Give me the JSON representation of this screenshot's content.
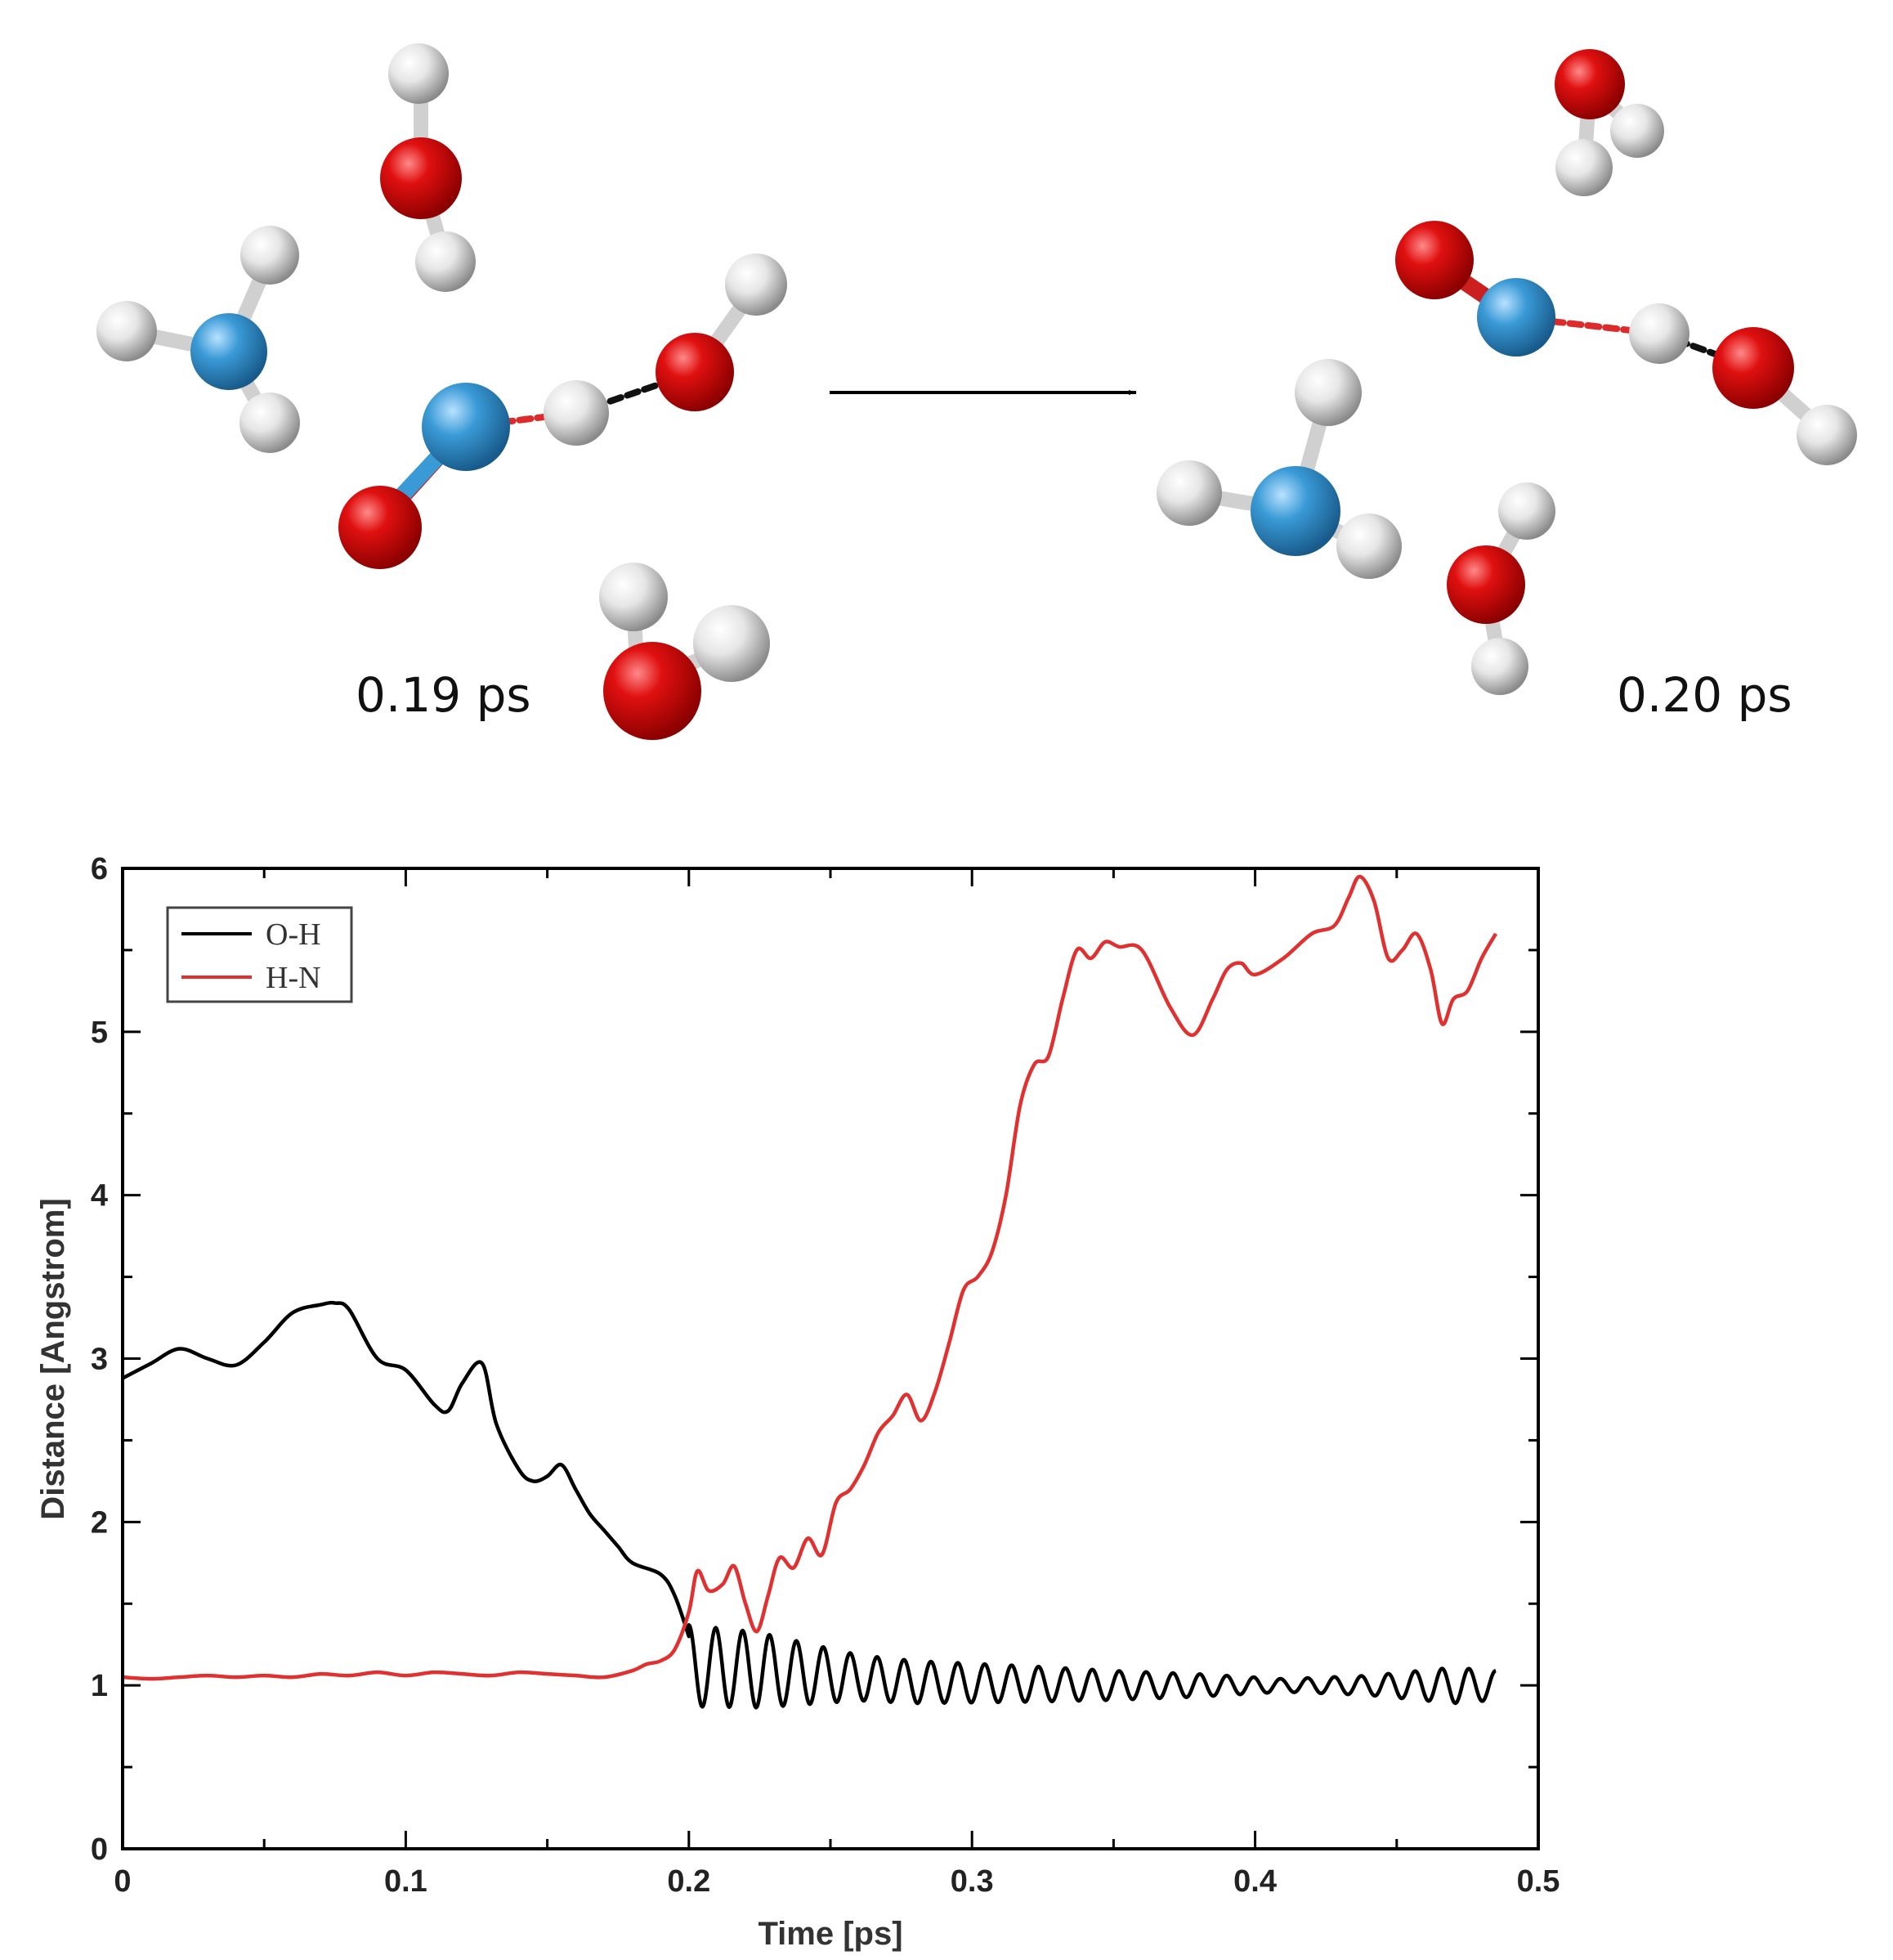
{
  "snapshots": {
    "left_label": "0.19 ps",
    "right_label": "0.20 ps",
    "colors": {
      "oxygen": "#d80a0a",
      "nitrogen": "#3a9ad6",
      "hydrogen": "#e6e6e6"
    }
  },
  "chart_data": {
    "type": "line",
    "xlabel": "Time [ps]",
    "ylabel": "Distance [Angstrom]",
    "xlim": [
      0,
      0.5
    ],
    "ylim": [
      0,
      6
    ],
    "xticks": [
      0,
      0.1,
      0.2,
      0.3,
      0.4,
      0.5
    ],
    "xtick_labels": [
      "0",
      "0.1",
      "0.2",
      "0.3",
      "0.4",
      "0.5"
    ],
    "yticks": [
      0,
      1,
      2,
      3,
      4,
      5,
      6
    ],
    "ytick_labels": [
      "0",
      "1",
      "2",
      "3",
      "4",
      "5",
      "6"
    ],
    "grid": false,
    "legend_position": "top-left",
    "series": [
      {
        "name": "O-H",
        "color": "#000000",
        "x": [
          0,
          0.01,
          0.02,
          0.03,
          0.04,
          0.05,
          0.06,
          0.07,
          0.075,
          0.08,
          0.09,
          0.1,
          0.11,
          0.115,
          0.12,
          0.127,
          0.132,
          0.14,
          0.145,
          0.15,
          0.155,
          0.16,
          0.165,
          0.17,
          0.175,
          0.18,
          0.19,
          0.195,
          0.2
        ],
        "y": [
          2.88,
          2.97,
          3.06,
          3.0,
          2.96,
          3.1,
          3.28,
          3.33,
          3.34,
          3.3,
          3.0,
          2.93,
          2.72,
          2.68,
          2.85,
          2.97,
          2.6,
          2.32,
          2.25,
          2.28,
          2.35,
          2.2,
          2.05,
          1.95,
          1.85,
          1.75,
          1.68,
          1.55,
          1.3
        ],
        "osc": {
          "start": 0.2,
          "end": 0.485,
          "period": 0.0095,
          "baseline": [
            [
              0.2,
              1.12
            ],
            [
              0.22,
              1.1
            ],
            [
              0.28,
              1.02
            ],
            [
              0.35,
              1.0
            ],
            [
              0.42,
              1.0
            ],
            [
              0.485,
              1.0
            ]
          ],
          "amplitude": [
            [
              0.2,
              0.25
            ],
            [
              0.225,
              0.23
            ],
            [
              0.26,
              0.14
            ],
            [
              0.32,
              0.11
            ],
            [
              0.38,
              0.07
            ],
            [
              0.41,
              0.04
            ],
            [
              0.44,
              0.06
            ],
            [
              0.47,
              0.11
            ],
            [
              0.485,
              0.09
            ]
          ]
        }
      },
      {
        "name": "H-N",
        "color": "#e03030",
        "x": [
          0,
          0.01,
          0.02,
          0.03,
          0.04,
          0.05,
          0.06,
          0.07,
          0.08,
          0.09,
          0.1,
          0.11,
          0.12,
          0.13,
          0.14,
          0.15,
          0.16,
          0.17,
          0.18,
          0.185,
          0.19,
          0.195,
          0.2,
          0.203,
          0.207,
          0.212,
          0.216,
          0.22,
          0.224,
          0.228,
          0.232,
          0.237,
          0.242,
          0.247,
          0.252,
          0.257,
          0.262,
          0.267,
          0.272,
          0.277,
          0.282,
          0.287,
          0.292,
          0.297,
          0.302,
          0.307,
          0.312,
          0.317,
          0.322,
          0.327,
          0.332,
          0.337,
          0.342,
          0.347,
          0.352,
          0.36,
          0.37,
          0.378,
          0.385,
          0.39,
          0.395,
          0.4,
          0.41,
          0.42,
          0.428,
          0.433,
          0.437,
          0.442,
          0.447,
          0.452,
          0.457,
          0.462,
          0.466,
          0.47,
          0.475,
          0.48,
          0.485
        ],
        "y": [
          1.05,
          1.04,
          1.05,
          1.06,
          1.05,
          1.06,
          1.05,
          1.07,
          1.06,
          1.08,
          1.06,
          1.08,
          1.07,
          1.06,
          1.08,
          1.07,
          1.06,
          1.05,
          1.09,
          1.13,
          1.15,
          1.22,
          1.45,
          1.7,
          1.58,
          1.62,
          1.73,
          1.5,
          1.33,
          1.55,
          1.78,
          1.72,
          1.9,
          1.8,
          2.12,
          2.2,
          2.35,
          2.55,
          2.65,
          2.78,
          2.62,
          2.8,
          3.1,
          3.42,
          3.5,
          3.65,
          4.0,
          4.55,
          4.8,
          4.85,
          5.2,
          5.5,
          5.45,
          5.55,
          5.52,
          5.5,
          5.15,
          4.98,
          5.2,
          5.38,
          5.42,
          5.35,
          5.45,
          5.6,
          5.65,
          5.82,
          5.95,
          5.8,
          5.45,
          5.5,
          5.6,
          5.38,
          5.05,
          5.2,
          5.25,
          5.45,
          5.6
        ]
      }
    ]
  }
}
